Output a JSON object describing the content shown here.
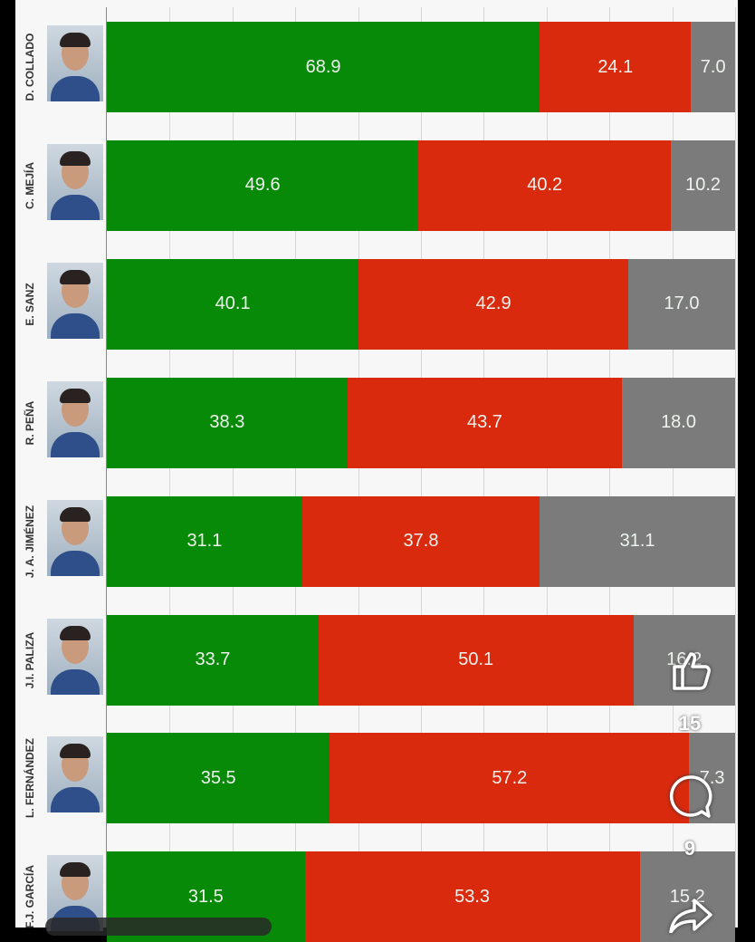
{
  "chart_data": {
    "type": "bar",
    "orientation": "horizontal-stacked-100",
    "categories": [
      "D. COLLADO",
      "C. MEJÍA",
      "E. SANZ",
      "R. PEÑA",
      "J. A. JIMÉNEZ",
      "J.I. PALIZA",
      "L. FERNÁNDEZ",
      "F.J. GARCÍA"
    ],
    "series": [
      {
        "name": "favorable",
        "color": "#078a07",
        "values": [
          68.9,
          49.6,
          40.1,
          38.3,
          31.1,
          33.7,
          35.5,
          31.5
        ]
      },
      {
        "name": "unfavorable",
        "color": "#da2a0e",
        "values": [
          24.1,
          40.2,
          42.9,
          43.7,
          37.8,
          50.1,
          57.2,
          53.3
        ]
      },
      {
        "name": "other",
        "color": "#7b7b7b",
        "values": [
          7.0,
          10.2,
          17.0,
          18.0,
          31.1,
          16.2,
          7.3,
          15.2
        ]
      }
    ],
    "xlim": [
      0,
      100
    ],
    "grid": true
  },
  "overlay": {
    "like_icon": "thumbs-up-icon",
    "like_count": "15",
    "comment_icon": "comment-bubble-icon",
    "comment_count": "9",
    "share_icon": "share-arrow-icon"
  }
}
